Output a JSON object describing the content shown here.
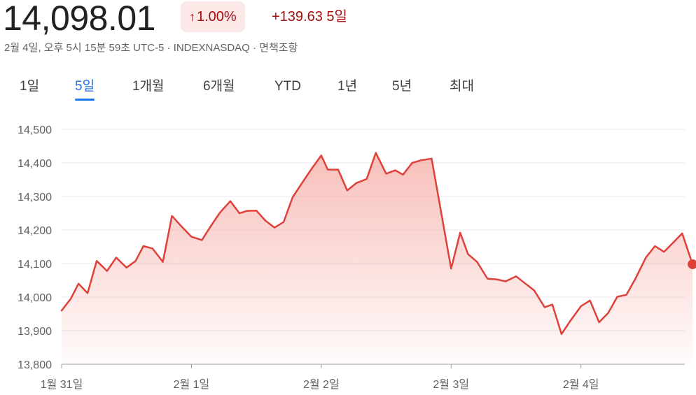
{
  "quote": {
    "price": "14,098.01",
    "percent": "1.00%",
    "change": "+139.63",
    "period": "5일",
    "subtitle": "2월 4일, 오후 5시 15분 59초 UTC-5 · INDEXNASDAQ · 면책조항",
    "trend_color": "#a50e0e",
    "trend_bg": "#fce8e6",
    "arrow_icon": "arrow-up-icon"
  },
  "tabs": [
    {
      "label": "1일",
      "active": false
    },
    {
      "label": "5일",
      "active": true
    },
    {
      "label": "1개월",
      "active": false
    },
    {
      "label": "6개월",
      "active": false
    },
    {
      "label": "YTD",
      "active": false
    },
    {
      "label": "1년",
      "active": false
    },
    {
      "label": "5년",
      "active": false
    },
    {
      "label": "최대",
      "active": false
    }
  ],
  "chart_data": {
    "type": "area",
    "title": "",
    "xlabel": "",
    "ylabel": "",
    "ylim": [
      13800,
      14500
    ],
    "yticks": [
      13800,
      13900,
      14000,
      14100,
      14200,
      14300,
      14400,
      14500
    ],
    "ytick_labels": [
      "13,800",
      "13,900",
      "14,000",
      "14,100",
      "14,200",
      "14,300",
      "14,400",
      "14,500"
    ],
    "xlim": [
      0,
      4.8
    ],
    "xticks": [
      0,
      1,
      2,
      3,
      4
    ],
    "xtick_labels": [
      "1월 31일",
      "2월 1일",
      "2월 2일",
      "2월 3일",
      "2월 4일"
    ],
    "grid": true,
    "line_color": "#e0403a",
    "fill_color": "#f28b82",
    "series": [
      {
        "x": [
          0,
          0.07,
          0.13,
          0.2,
          0.27,
          0.35,
          0.42,
          0.5,
          0.57,
          0.63,
          0.7,
          0.78,
          0.85,
          0.92,
          1.0,
          1.08,
          1.15,
          1.22,
          1.3,
          1.37,
          1.43,
          1.5,
          1.57,
          1.64,
          1.71,
          1.78,
          1.86,
          1.93,
          2.0,
          2.05,
          2.13,
          2.2,
          2.27,
          2.35,
          2.42,
          2.5,
          2.57,
          2.63,
          2.7,
          2.77,
          2.85,
          3.0,
          3.07,
          3.13,
          3.2,
          3.28,
          3.35,
          3.42,
          3.5,
          3.57,
          3.64,
          3.72,
          3.78,
          3.85,
          3.92,
          4.0,
          4.07,
          4.14,
          4.21,
          4.28,
          4.35,
          4.42,
          4.5,
          4.57,
          4.64,
          4.72,
          4.78,
          4.86
        ],
        "y": [
          13960,
          13995,
          14040,
          14012,
          14108,
          14078,
          14118,
          14088,
          14108,
          14152,
          14145,
          14105,
          14242,
          14212,
          14180,
          14170,
          14212,
          14252,
          14286,
          14250,
          14257,
          14258,
          14228,
          14207,
          14224,
          14298,
          14345,
          14385,
          14422,
          14380,
          14380,
          14318,
          14340,
          14352,
          14430,
          14368,
          14378,
          14365,
          14400,
          14408,
          14413,
          14085,
          14192,
          14128,
          14105,
          14055,
          14053,
          14047,
          14062,
          14041,
          14020,
          13970,
          13978,
          13890,
          13930,
          13973,
          13990,
          13925,
          13953,
          14001,
          14007,
          14055,
          14118,
          14152,
          14135,
          14166,
          14190,
          14098
        ]
      }
    ]
  }
}
